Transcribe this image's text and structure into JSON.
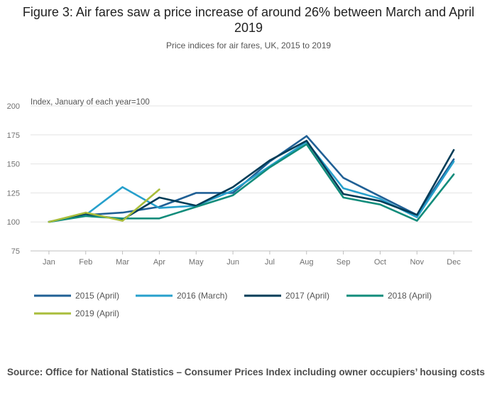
{
  "chart_data": {
    "type": "line",
    "title": "Figure 3: Air fares saw a price increase of around 26% between March and April 2019",
    "subtitle": "Price indices for air fares, UK, 2015 to 2019",
    "ylabel": "Index, January of each year=100",
    "xlabel": "",
    "categories": [
      "Jan",
      "Feb",
      "Mar",
      "Apr",
      "May",
      "Jun",
      "Jul",
      "Aug",
      "Sep",
      "Oct",
      "Nov",
      "Dec"
    ],
    "ylim": [
      75,
      200
    ],
    "yticks": [
      75,
      100,
      125,
      150,
      175,
      200
    ],
    "grid": true,
    "legend_position": "bottom",
    "series": [
      {
        "name": "2015 (April)",
        "color": "#206095",
        "values": [
          100,
          106,
          108,
          113,
          125,
          125,
          152,
          174,
          138,
          122,
          106,
          154
        ]
      },
      {
        "name": "2016 (March)",
        "color": "#27a0cc",
        "values": [
          100,
          106,
          130,
          112,
          114,
          127,
          148,
          169,
          129,
          120,
          104,
          152
        ]
      },
      {
        "name": "2017 (April)",
        "color": "#003c57",
        "values": [
          100,
          107,
          102,
          121,
          114,
          130,
          153,
          170,
          124,
          118,
          106,
          162
        ]
      },
      {
        "name": "2018 (April)",
        "color": "#118c7b",
        "values": [
          100,
          105,
          103,
          103,
          113,
          123,
          147,
          167,
          121,
          115,
          101,
          141
        ]
      },
      {
        "name": "2019 (April)",
        "color": "#a8bd3a",
        "values": [
          100,
          108,
          101,
          128,
          null,
          null,
          null,
          null,
          null,
          null,
          null,
          null
        ]
      }
    ]
  },
  "source": "Source: Office for National Statistics – Consumer Prices Index including owner occupiers’ housing costs"
}
